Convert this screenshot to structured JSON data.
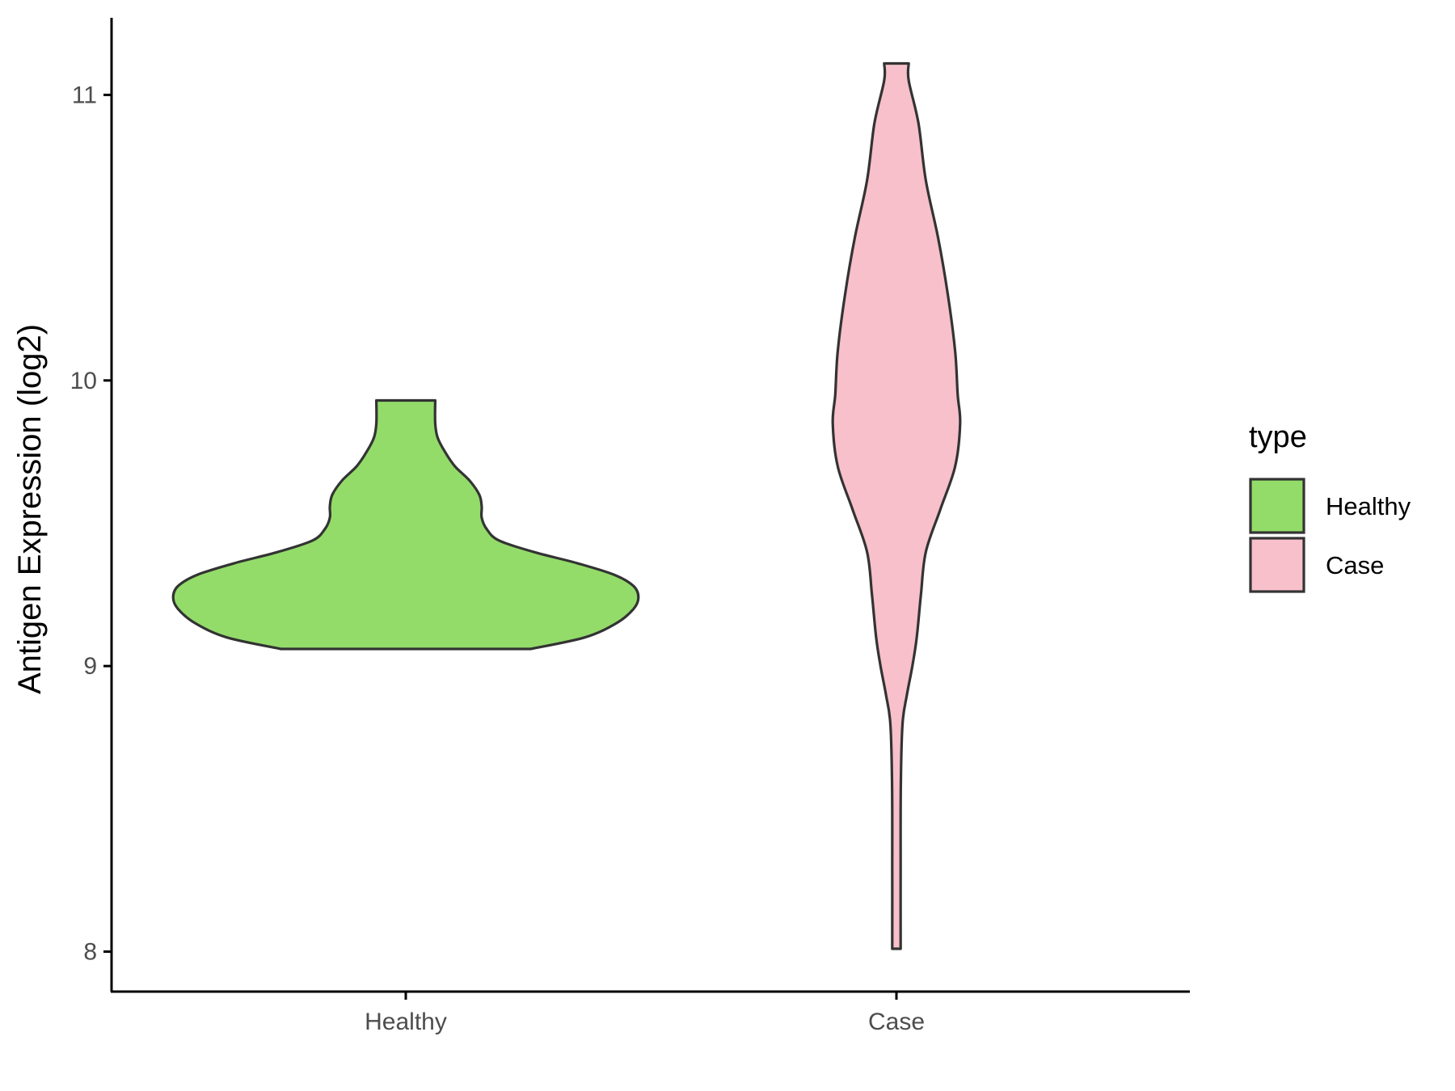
{
  "chart_data": {
    "type": "violin",
    "ylabel": "Antigen Expression (log2)",
    "xlabel": "",
    "categories": [
      "Healthy",
      "Case"
    ],
    "yticks": [
      8,
      9,
      10,
      11
    ],
    "ylim": [
      7.86,
      11.27
    ],
    "grid": false,
    "legend": {
      "title": "type",
      "position": "right",
      "entries": [
        {
          "label": "Healthy",
          "color": "#93dc6a"
        },
        {
          "label": "Case",
          "color": "#f7c0cb"
        }
      ]
    },
    "series": [
      {
        "name": "Healthy",
        "color": "#93dc6a",
        "min": 9.06,
        "max": 9.93,
        "density": [
          [
            9.06,
            0.51
          ],
          [
            9.1,
            0.73
          ],
          [
            9.15,
            0.86
          ],
          [
            9.2,
            0.93
          ],
          [
            9.24,
            0.95
          ],
          [
            9.28,
            0.93
          ],
          [
            9.32,
            0.85
          ],
          [
            9.36,
            0.7
          ],
          [
            9.4,
            0.52
          ],
          [
            9.44,
            0.38
          ],
          [
            9.48,
            0.33
          ],
          [
            9.52,
            0.31
          ],
          [
            9.56,
            0.31
          ],
          [
            9.6,
            0.3
          ],
          [
            9.65,
            0.26
          ],
          [
            9.7,
            0.2
          ],
          [
            9.75,
            0.16
          ],
          [
            9.8,
            0.13
          ],
          [
            9.85,
            0.12
          ],
          [
            9.93,
            0.12
          ]
        ]
      },
      {
        "name": "Case",
        "color": "#f7c0cb",
        "min": 8.01,
        "max": 11.11,
        "density": [
          [
            8.01,
            0.017
          ],
          [
            8.3,
            0.017
          ],
          [
            8.6,
            0.018
          ],
          [
            8.8,
            0.025
          ],
          [
            8.9,
            0.043
          ],
          [
            9.0,
            0.065
          ],
          [
            9.1,
            0.083
          ],
          [
            9.25,
            0.1
          ],
          [
            9.4,
            0.12
          ],
          [
            9.55,
            0.18
          ],
          [
            9.7,
            0.24
          ],
          [
            9.85,
            0.26
          ],
          [
            9.95,
            0.25
          ],
          [
            10.1,
            0.24
          ],
          [
            10.3,
            0.21
          ],
          [
            10.5,
            0.17
          ],
          [
            10.7,
            0.12
          ],
          [
            10.9,
            0.09
          ],
          [
            11.05,
            0.05
          ],
          [
            11.11,
            0.05
          ]
        ]
      }
    ]
  }
}
